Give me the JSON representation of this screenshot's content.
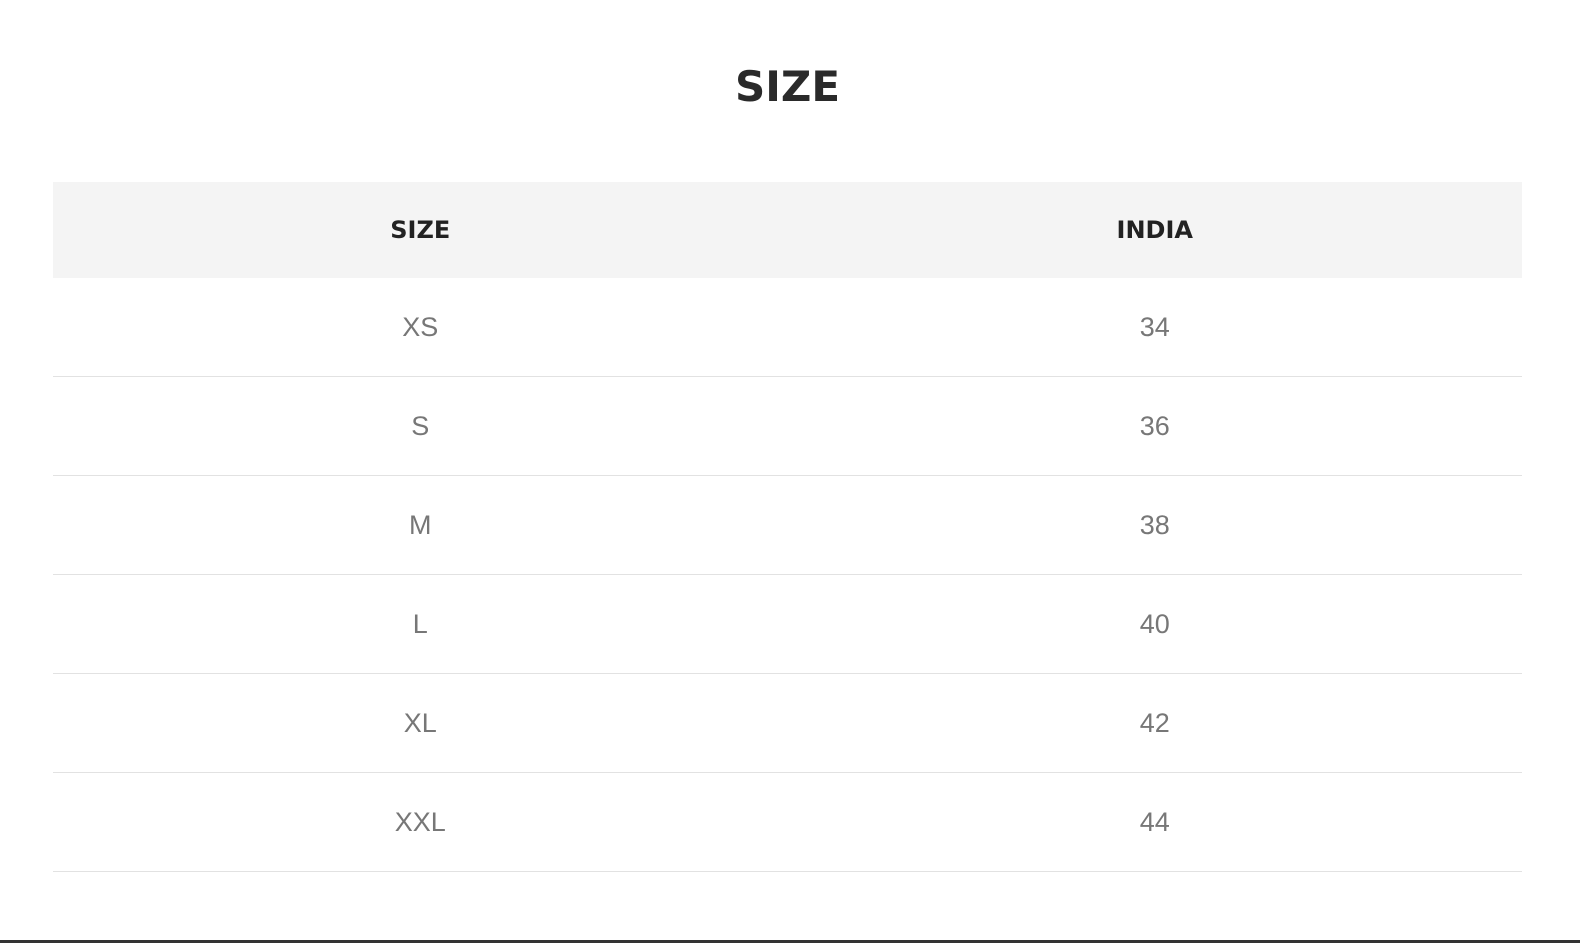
{
  "title": "SIZE",
  "table": {
    "headers": [
      "SIZE",
      "INDIA"
    ],
    "rows": [
      [
        "XS",
        "34"
      ],
      [
        "S",
        "36"
      ],
      [
        "M",
        "38"
      ],
      [
        "L",
        "40"
      ],
      [
        "XL",
        "42"
      ],
      [
        "XXL",
        "44"
      ]
    ]
  }
}
